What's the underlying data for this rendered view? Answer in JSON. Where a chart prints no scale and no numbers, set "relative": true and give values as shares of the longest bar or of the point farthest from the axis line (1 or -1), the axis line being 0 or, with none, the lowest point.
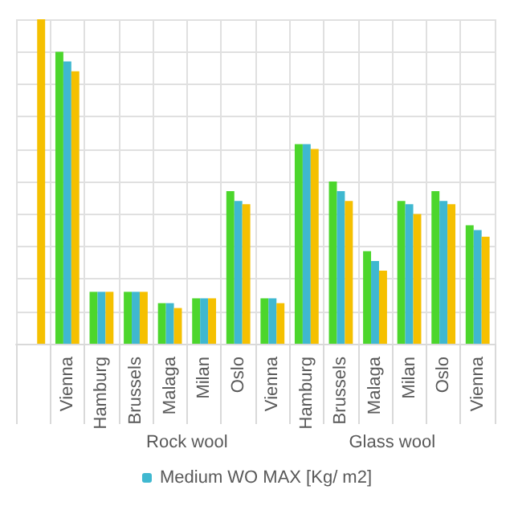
{
  "chart_data": {
    "type": "bar",
    "relative": true,
    "categories": [
      null,
      "Vienna",
      "Hamburg",
      "Brussels",
      "Malaga",
      "Milan",
      "Oslo",
      "Vienna",
      "Hamburg",
      "Brussels",
      "Malaga",
      "Milan",
      "Oslo",
      "Vienna"
    ],
    "series": [
      {
        "color": "#4cd62c",
        "values": [
          null,
          0.9,
          0.16,
          0.16,
          0.125,
          0.14,
          0.47,
          0.14,
          0.615,
          0.5,
          0.285,
          0.44,
          0.47,
          0.365
        ]
      },
      {
        "name": "Medium WO MAX [Kg/ m2]",
        "color": "#3fb8d0",
        "values": [
          null,
          0.87,
          0.16,
          0.16,
          0.125,
          0.14,
          0.44,
          0.14,
          0.615,
          0.47,
          0.255,
          0.43,
          0.44,
          0.35
        ]
      },
      {
        "color": "#f5c000",
        "values": [
          1,
          0.84,
          0.16,
          0.16,
          0.11,
          0.14,
          0.43,
          0.125,
          0.6,
          0.44,
          0.225,
          0.4,
          0.43,
          0.33
        ]
      }
    ],
    "annotations": [
      "Rock wool",
      "Glass wool"
    ],
    "grid": true,
    "legend": "bottom"
  }
}
